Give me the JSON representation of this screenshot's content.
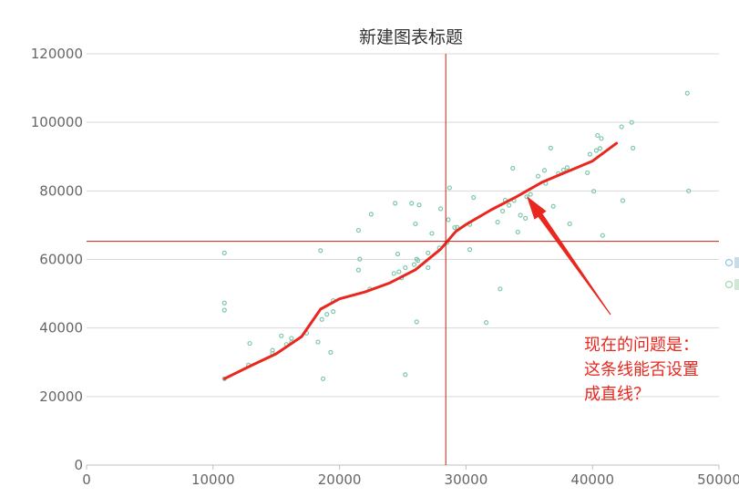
{
  "chart_data": {
    "type": "scatter",
    "title": "新建图表标题",
    "xlim": [
      0,
      50000
    ],
    "ylim": [
      0,
      120000
    ],
    "x_ticks": [
      0,
      10000,
      20000,
      30000,
      40000,
      50000
    ],
    "y_ticks": [
      0,
      20000,
      40000,
      60000,
      80000,
      100000,
      120000
    ],
    "grid": "horizontal",
    "legend_position": "right",
    "crosshair": {
      "x": 28400,
      "y": 65300
    },
    "series": [
      {
        "color": "#7fc8a9",
        "marker": "hollow-circle",
        "points": [
          [
            10900,
            25200
          ],
          [
            10900,
            47300
          ],
          [
            10900,
            45200
          ],
          [
            10900,
            61900
          ],
          [
            12900,
            35500
          ],
          [
            12800,
            29200
          ],
          [
            14700,
            33500
          ],
          [
            14700,
            32600
          ],
          [
            15400,
            37700
          ],
          [
            15800,
            35200
          ],
          [
            16200,
            37000
          ],
          [
            16200,
            35800
          ],
          [
            17400,
            38500
          ],
          [
            18300,
            35900
          ],
          [
            18500,
            62600
          ],
          [
            18600,
            42500
          ],
          [
            18700,
            25200
          ],
          [
            19000,
            44000
          ],
          [
            19300,
            32900
          ],
          [
            19500,
            44800
          ],
          [
            19500,
            48000
          ],
          [
            21500,
            56900
          ],
          [
            21500,
            68500
          ],
          [
            21600,
            60100
          ],
          [
            22400,
            51400
          ],
          [
            22500,
            73200
          ],
          [
            24300,
            55900
          ],
          [
            24400,
            76400
          ],
          [
            24600,
            61600
          ],
          [
            24700,
            56400
          ],
          [
            24900,
            54600
          ],
          [
            25200,
            57600
          ],
          [
            25200,
            26400
          ],
          [
            25700,
            76400
          ],
          [
            25900,
            58500
          ],
          [
            26100,
            60100
          ],
          [
            26200,
            59700
          ],
          [
            26000,
            70400
          ],
          [
            26100,
            41800
          ],
          [
            26300,
            75900
          ],
          [
            27000,
            57600
          ],
          [
            27000,
            61900
          ],
          [
            27300,
            67600
          ],
          [
            27900,
            63400
          ],
          [
            28000,
            74800
          ],
          [
            28500,
            64900
          ],
          [
            28600,
            71600
          ],
          [
            28700,
            80900
          ],
          [
            29100,
            69300
          ],
          [
            29300,
            69400
          ],
          [
            30300,
            62900
          ],
          [
            30300,
            70200
          ],
          [
            30600,
            78100
          ],
          [
            31600,
            41600
          ],
          [
            32500,
            70900
          ],
          [
            32700,
            51400
          ],
          [
            32900,
            74100
          ],
          [
            33100,
            77300
          ],
          [
            33400,
            75800
          ],
          [
            33700,
            86600
          ],
          [
            33800,
            77200
          ],
          [
            34100,
            68000
          ],
          [
            34300,
            72900
          ],
          [
            34700,
            72000
          ],
          [
            34800,
            78300
          ],
          [
            35100,
            79000
          ],
          [
            35700,
            84300
          ],
          [
            36200,
            86000
          ],
          [
            36300,
            82200
          ],
          [
            36700,
            92500
          ],
          [
            36900,
            75500
          ],
          [
            37300,
            85100
          ],
          [
            37700,
            86100
          ],
          [
            38000,
            86800
          ],
          [
            38200,
            70400
          ],
          [
            39600,
            85300
          ],
          [
            39800,
            90700
          ],
          [
            40100,
            79900
          ],
          [
            40300,
            91800
          ],
          [
            40400,
            96200
          ],
          [
            40600,
            92400
          ],
          [
            40700,
            95300
          ],
          [
            40800,
            67000
          ],
          [
            42300,
            98700
          ],
          [
            42400,
            77200
          ],
          [
            43100,
            100000
          ],
          [
            43200,
            92500
          ],
          [
            47500,
            108500
          ],
          [
            47600,
            80000
          ]
        ]
      }
    ],
    "trend_line": {
      "color": "#e8281e",
      "points": [
        [
          10900,
          25200
        ],
        [
          13000,
          29000
        ],
        [
          15000,
          32500
        ],
        [
          17000,
          37500
        ],
        [
          18500,
          45500
        ],
        [
          20000,
          48500
        ],
        [
          22000,
          50500
        ],
        [
          24000,
          53200
        ],
        [
          26000,
          57000
        ],
        [
          28000,
          63000
        ],
        [
          29200,
          68200
        ],
        [
          30000,
          70200
        ],
        [
          32000,
          74500
        ],
        [
          34000,
          78300
        ],
        [
          36000,
          82500
        ],
        [
          38000,
          85600
        ],
        [
          40000,
          88700
        ],
        [
          41900,
          93900
        ]
      ]
    },
    "annotation": {
      "lines": [
        "现在的问题是：",
        "这条线能否设置",
        "成直线？"
      ],
      "arrow_color": "#e8281e",
      "arrow_target": [
        34800,
        78500
      ]
    }
  }
}
